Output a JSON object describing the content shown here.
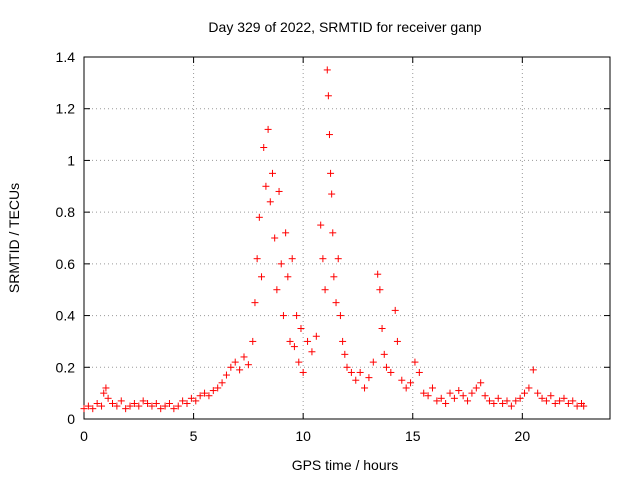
{
  "chart_data": {
    "type": "scatter",
    "title": "Day 329 of 2022, SRMTID for receiver ganp",
    "xlabel": "GPS time / hours",
    "ylabel": "SRMTID / TECUs",
    "xlim": [
      0,
      24
    ],
    "ylim": [
      0,
      1.4
    ],
    "xticks": [
      0,
      5,
      10,
      15,
      20
    ],
    "xtick_labels": [
      "0",
      "5",
      "10",
      "15",
      "20"
    ],
    "yticks": [
      0,
      0.2,
      0.4,
      0.6,
      0.8,
      1.0,
      1.2,
      1.4
    ],
    "ytick_labels": [
      "0",
      "0.2",
      "0.4",
      "0.6",
      "0.8",
      "1",
      "1.2",
      "1.4"
    ],
    "grid": true,
    "marker": "+",
    "series": [
      {
        "name": "SRMTID",
        "color": "#ff0000",
        "points": [
          [
            0.0,
            0.04
          ],
          [
            0.2,
            0.05
          ],
          [
            0.4,
            0.04
          ],
          [
            0.6,
            0.06
          ],
          [
            0.8,
            0.05
          ],
          [
            0.9,
            0.1
          ],
          [
            1.0,
            0.12
          ],
          [
            1.1,
            0.08
          ],
          [
            1.3,
            0.06
          ],
          [
            1.5,
            0.05
          ],
          [
            1.7,
            0.07
          ],
          [
            1.9,
            0.04
          ],
          [
            2.1,
            0.05
          ],
          [
            2.3,
            0.06
          ],
          [
            2.5,
            0.05
          ],
          [
            2.7,
            0.07
          ],
          [
            2.9,
            0.06
          ],
          [
            3.1,
            0.05
          ],
          [
            3.3,
            0.06
          ],
          [
            3.5,
            0.04
          ],
          [
            3.7,
            0.05
          ],
          [
            3.9,
            0.06
          ],
          [
            4.1,
            0.04
          ],
          [
            4.3,
            0.05
          ],
          [
            4.5,
            0.07
          ],
          [
            4.7,
            0.06
          ],
          [
            4.9,
            0.08
          ],
          [
            5.1,
            0.07
          ],
          [
            5.3,
            0.09
          ],
          [
            5.5,
            0.1
          ],
          [
            5.7,
            0.09
          ],
          [
            5.9,
            0.11
          ],
          [
            6.1,
            0.12
          ],
          [
            6.3,
            0.14
          ],
          [
            6.5,
            0.17
          ],
          [
            6.7,
            0.2
          ],
          [
            6.9,
            0.22
          ],
          [
            7.1,
            0.19
          ],
          [
            7.3,
            0.24
          ],
          [
            7.5,
            0.21
          ],
          [
            7.7,
            0.3
          ],
          [
            7.8,
            0.45
          ],
          [
            7.9,
            0.62
          ],
          [
            8.0,
            0.78
          ],
          [
            8.1,
            0.55
          ],
          [
            8.2,
            1.05
          ],
          [
            8.3,
            0.9
          ],
          [
            8.4,
            1.12
          ],
          [
            8.5,
            0.84
          ],
          [
            8.6,
            0.95
          ],
          [
            8.7,
            0.7
          ],
          [
            8.8,
            0.5
          ],
          [
            8.9,
            0.88
          ],
          [
            9.0,
            0.6
          ],
          [
            9.1,
            0.4
          ],
          [
            9.2,
            0.72
          ],
          [
            9.3,
            0.55
          ],
          [
            9.4,
            0.3
          ],
          [
            9.5,
            0.62
          ],
          [
            9.6,
            0.28
          ],
          [
            9.7,
            0.4
          ],
          [
            9.8,
            0.22
          ],
          [
            9.9,
            0.35
          ],
          [
            10.0,
            0.18
          ],
          [
            10.2,
            0.3
          ],
          [
            10.4,
            0.26
          ],
          [
            10.6,
            0.32
          ],
          [
            10.8,
            0.75
          ],
          [
            10.9,
            0.62
          ],
          [
            11.0,
            0.5
          ],
          [
            11.1,
            1.35
          ],
          [
            11.15,
            1.25
          ],
          [
            11.2,
            1.1
          ],
          [
            11.25,
            0.95
          ],
          [
            11.3,
            0.87
          ],
          [
            11.35,
            0.72
          ],
          [
            11.4,
            0.55
          ],
          [
            11.5,
            0.45
          ],
          [
            11.6,
            0.62
          ],
          [
            11.7,
            0.4
          ],
          [
            11.8,
            0.3
          ],
          [
            11.9,
            0.25
          ],
          [
            12.0,
            0.2
          ],
          [
            12.2,
            0.18
          ],
          [
            12.4,
            0.15
          ],
          [
            12.6,
            0.18
          ],
          [
            12.8,
            0.12
          ],
          [
            13.0,
            0.16
          ],
          [
            13.2,
            0.22
          ],
          [
            13.4,
            0.56
          ],
          [
            13.5,
            0.5
          ],
          [
            13.6,
            0.35
          ],
          [
            13.7,
            0.25
          ],
          [
            13.8,
            0.2
          ],
          [
            14.0,
            0.18
          ],
          [
            14.2,
            0.42
          ],
          [
            14.3,
            0.3
          ],
          [
            14.5,
            0.15
          ],
          [
            14.7,
            0.12
          ],
          [
            14.9,
            0.14
          ],
          [
            15.1,
            0.22
          ],
          [
            15.3,
            0.18
          ],
          [
            15.5,
            0.1
          ],
          [
            15.7,
            0.09
          ],
          [
            15.9,
            0.12
          ],
          [
            16.1,
            0.07
          ],
          [
            16.3,
            0.08
          ],
          [
            16.5,
            0.06
          ],
          [
            16.7,
            0.1
          ],
          [
            16.9,
            0.08
          ],
          [
            17.1,
            0.11
          ],
          [
            17.3,
            0.09
          ],
          [
            17.5,
            0.07
          ],
          [
            17.7,
            0.1
          ],
          [
            17.9,
            0.12
          ],
          [
            18.1,
            0.14
          ],
          [
            18.3,
            0.09
          ],
          [
            18.5,
            0.07
          ],
          [
            18.7,
            0.06
          ],
          [
            18.9,
            0.08
          ],
          [
            19.1,
            0.06
          ],
          [
            19.3,
            0.07
          ],
          [
            19.5,
            0.05
          ],
          [
            19.7,
            0.07
          ],
          [
            19.9,
            0.08
          ],
          [
            20.1,
            0.1
          ],
          [
            20.3,
            0.12
          ],
          [
            20.5,
            0.19
          ],
          [
            20.7,
            0.1
          ],
          [
            20.9,
            0.08
          ],
          [
            21.1,
            0.07
          ],
          [
            21.3,
            0.09
          ],
          [
            21.5,
            0.06
          ],
          [
            21.7,
            0.07
          ],
          [
            21.9,
            0.08
          ],
          [
            22.1,
            0.06
          ],
          [
            22.3,
            0.07
          ],
          [
            22.5,
            0.05
          ],
          [
            22.7,
            0.06
          ],
          [
            22.8,
            0.05
          ]
        ]
      }
    ]
  }
}
